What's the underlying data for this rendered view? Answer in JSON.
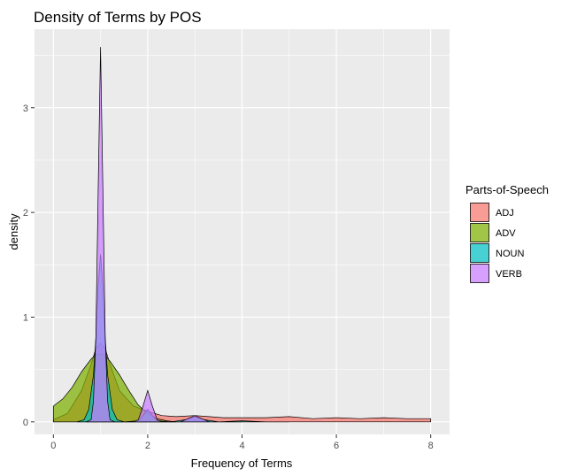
{
  "chart_data": {
    "type": "area",
    "title": "Density of Terms by POS",
    "xlabel": "Frequency of Terms",
    "ylabel": "density",
    "xlim": [
      -0.4,
      8.4
    ],
    "ylim": [
      -0.12,
      3.75
    ],
    "x_ticks": [
      0,
      2,
      4,
      6,
      8
    ],
    "x_tick_labels": [
      "0",
      "2",
      "4",
      "6",
      "8"
    ],
    "y_ticks": [
      0,
      1,
      2,
      3
    ],
    "y_tick_labels": [
      "0",
      "1",
      "2",
      "3"
    ],
    "grid": true,
    "legend": {
      "title": "Parts-of-Speech",
      "position": "right"
    },
    "series": [
      {
        "name": "ADJ",
        "color": "#F8766D",
        "points": [
          [
            0,
            0.02
          ],
          [
            0.3,
            0.08
          ],
          [
            0.6,
            0.3
          ],
          [
            0.8,
            0.55
          ],
          [
            0.9,
            0.7
          ],
          [
            1.0,
            0.75
          ],
          [
            1.1,
            0.7
          ],
          [
            1.2,
            0.55
          ],
          [
            1.4,
            0.3
          ],
          [
            1.7,
            0.15
          ],
          [
            2.0,
            0.1
          ],
          [
            2.3,
            0.06
          ],
          [
            2.6,
            0.05
          ],
          [
            3.0,
            0.06
          ],
          [
            3.3,
            0.05
          ],
          [
            3.6,
            0.04
          ],
          [
            4.0,
            0.04
          ],
          [
            4.5,
            0.04
          ],
          [
            5.0,
            0.05
          ],
          [
            5.5,
            0.03
          ],
          [
            6.0,
            0.04
          ],
          [
            6.5,
            0.03
          ],
          [
            7.0,
            0.04
          ],
          [
            7.5,
            0.03
          ],
          [
            8.0,
            0.03
          ]
        ]
      },
      {
        "name": "ADV",
        "color": "#7CAE00",
        "points": [
          [
            0,
            0.15
          ],
          [
            0.2,
            0.22
          ],
          [
            0.4,
            0.33
          ],
          [
            0.6,
            0.48
          ],
          [
            0.8,
            0.6
          ],
          [
            0.9,
            0.64
          ],
          [
            1.0,
            0.65
          ],
          [
            1.1,
            0.63
          ],
          [
            1.2,
            0.58
          ],
          [
            1.4,
            0.45
          ],
          [
            1.6,
            0.3
          ],
          [
            1.8,
            0.16
          ],
          [
            2.0,
            0.08
          ],
          [
            2.2,
            0.03
          ],
          [
            2.4,
            0.01
          ],
          [
            2.6,
            0.0
          ]
        ]
      },
      {
        "name": "NOUN",
        "color": "#00BFC4",
        "points": [
          [
            0.5,
            0.0
          ],
          [
            0.65,
            0.02
          ],
          [
            0.75,
            0.12
          ],
          [
            0.85,
            0.45
          ],
          [
            0.9,
            0.8
          ],
          [
            0.95,
            1.3
          ],
          [
            1.0,
            1.6
          ],
          [
            1.05,
            1.3
          ],
          [
            1.1,
            0.8
          ],
          [
            1.15,
            0.45
          ],
          [
            1.25,
            0.12
          ],
          [
            1.35,
            0.02
          ],
          [
            1.5,
            0.0
          ],
          [
            1.8,
            0.01
          ],
          [
            1.9,
            0.06
          ],
          [
            2.0,
            0.12
          ],
          [
            2.1,
            0.06
          ],
          [
            2.2,
            0.01
          ],
          [
            2.5,
            0.0
          ],
          [
            2.8,
            0.02
          ],
          [
            3.0,
            0.05
          ],
          [
            3.2,
            0.02
          ],
          [
            3.5,
            0.0
          ],
          [
            4.0,
            0.01
          ],
          [
            4.5,
            0.0
          ],
          [
            5.0,
            0.0
          ]
        ]
      },
      {
        "name": "VERB",
        "color": "#C77CFF",
        "points": [
          [
            0.7,
            0.0
          ],
          [
            0.8,
            0.02
          ],
          [
            0.85,
            0.2
          ],
          [
            0.9,
            0.8
          ],
          [
            0.95,
            2.2
          ],
          [
            1.0,
            3.58
          ],
          [
            1.05,
            2.2
          ],
          [
            1.1,
            0.8
          ],
          [
            1.15,
            0.2
          ],
          [
            1.2,
            0.02
          ],
          [
            1.3,
            0.0
          ],
          [
            1.7,
            0.0
          ],
          [
            1.8,
            0.02
          ],
          [
            1.9,
            0.15
          ],
          [
            2.0,
            0.3
          ],
          [
            2.1,
            0.15
          ],
          [
            2.2,
            0.02
          ],
          [
            2.3,
            0.0
          ],
          [
            2.7,
            0.0
          ],
          [
            3.0,
            0.06
          ],
          [
            3.3,
            0.0
          ],
          [
            4.0,
            0.0
          ]
        ]
      }
    ]
  }
}
